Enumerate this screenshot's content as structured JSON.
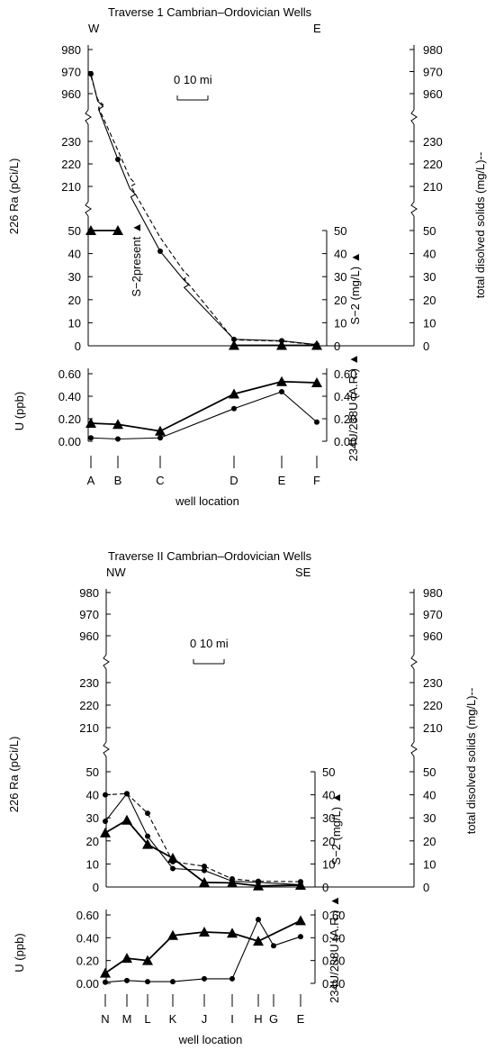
{
  "chart_data": [
    {
      "type": "line",
      "title": "Traverse 1 Cambrian–Ordovician Wells",
      "direction_left": "W",
      "direction_right": "E",
      "scale_bar_label": "0    10 mi",
      "xlabel": "well location",
      "categories": [
        "A",
        "B",
        "C",
        "D",
        "E",
        "F"
      ],
      "upper_panel": {
        "left_axis_label": "226 Ra (pCi/L)",
        "right_axis_label_inner": "S−2 (mg/L) ▲",
        "right_axis_label_outer": "total disolved solids (mg/L)--",
        "ticks_high": [
          "980",
          "970",
          "960"
        ],
        "ticks_mid": [
          "230",
          "220",
          "210"
        ],
        "ticks_low": [
          "50",
          "40",
          "30",
          "20",
          "10",
          "0"
        ],
        "ylim_low": [
          0,
          50
        ],
        "annotation": "S−2present ▲",
        "series": [
          {
            "name": "226 Ra (pCi/L)",
            "style": "solid-circle",
            "values": [
              {
                "x": "A",
                "y": 969
              },
              {
                "x": "B",
                "y": 222
              },
              {
                "x": "C",
                "y": 41
              },
              {
                "x": "D",
                "y": 2.8
              },
              {
                "x": "E",
                "y": 2.2
              },
              {
                "x": "F",
                "y": 0.5
              }
            ]
          },
          {
            "name": "total disolved solids (mg/L)",
            "style": "dashed",
            "values": [
              {
                "x": "A",
                "y": 968
              },
              {
                "x": "B",
                "y": 226
              },
              {
                "x": "C",
                "y": 47
              },
              {
                "x": "D",
                "y": 2.6
              },
              {
                "x": "E",
                "y": 2.0
              },
              {
                "x": "F",
                "y": 0.4
              }
            ]
          },
          {
            "name": "S−2 (mg/L)",
            "style": "solid-triangle",
            "values": [
              {
                "x": "A",
                "y": 50
              },
              {
                "x": "B",
                "y": 50
              },
              {
                "x": "D",
                "y": 0.2
              },
              {
                "x": "E",
                "y": 0.2
              },
              {
                "x": "F",
                "y": 0.2
              }
            ]
          }
        ]
      },
      "lower_panel": {
        "left_axis_label": "U (ppb)",
        "right_axis_label": "234U/238U (A.R.) ▲",
        "ticks": [
          "0.60",
          "0.40",
          "0.20",
          "0.00"
        ],
        "ylim": [
          0,
          0.6
        ],
        "series": [
          {
            "name": "U (ppb)",
            "style": "solid-circle",
            "values": [
              0.03,
              0.02,
              0.03,
              0.29,
              0.44,
              0.17
            ]
          },
          {
            "name": "234U/238U (A.R.)",
            "style": "solid-triangle",
            "values": [
              0.16,
              0.15,
              0.09,
              0.42,
              0.53,
              0.52
            ]
          }
        ]
      }
    },
    {
      "type": "line",
      "title": "Traverse II Cambrian–Ordovician Wells",
      "direction_left": "NW",
      "direction_right": "SE",
      "scale_bar_label": "0    10 mi",
      "xlabel": "well location",
      "categories": [
        "N",
        "M",
        "L",
        "K",
        "J",
        "I",
        "H",
        "G",
        "E"
      ],
      "upper_panel": {
        "left_axis_label": "226 Ra (pCi/L)",
        "right_axis_label_inner": "S−2 (mg/L) ▲",
        "right_axis_label_outer": "total disolved solids (mg/L)--",
        "ticks_high": [
          "980",
          "970",
          "960"
        ],
        "ticks_mid": [
          "230",
          "220",
          "210"
        ],
        "ticks_low": [
          "50",
          "40",
          "30",
          "20",
          "10",
          "0"
        ],
        "ylim_low": [
          0,
          50
        ],
        "series": [
          {
            "name": "226 Ra (pCi/L)",
            "style": "solid-circle",
            "values": [
              {
                "x": "N",
                "y": 28.5
              },
              {
                "x": "M",
                "y": 40.5
              },
              {
                "x": "L",
                "y": 22
              },
              {
                "x": "K",
                "y": 8
              },
              {
                "x": "J",
                "y": 7.2
              },
              {
                "x": "I",
                "y": 2.5
              },
              {
                "x": "H",
                "y": 2
              },
              {
                "x": "E",
                "y": 1
              }
            ]
          },
          {
            "name": "total disolved solids (mg/L)",
            "style": "dashed",
            "values": [
              {
                "x": "N",
                "y": 40
              },
              {
                "x": "M",
                "y": 40.5
              },
              {
                "x": "L",
                "y": 32
              },
              {
                "x": "K",
                "y": 11
              },
              {
                "x": "J",
                "y": 9
              },
              {
                "x": "I",
                "y": 3.5
              },
              {
                "x": "H",
                "y": 2.5
              },
              {
                "x": "E",
                "y": 2.3
              }
            ]
          },
          {
            "name": "S−2 (mg/L)",
            "style": "solid-triangle",
            "values": [
              {
                "x": "N",
                "y": 23.5
              },
              {
                "x": "M",
                "y": 29
              },
              {
                "x": "L",
                "y": 18.5
              },
              {
                "x": "K",
                "y": 12.5
              },
              {
                "x": "J",
                "y": 2
              },
              {
                "x": "I",
                "y": 1.8
              },
              {
                "x": "H",
                "y": 0.5
              },
              {
                "x": "E",
                "y": 0.8
              }
            ]
          }
        ]
      },
      "lower_panel": {
        "left_axis_label": "U (ppb)",
        "right_axis_label": "234U/238U (A.R.) ▲",
        "ticks": [
          "0.60",
          "0.40",
          "0.20",
          "0.00"
        ],
        "ylim": [
          0,
          0.6
        ],
        "series": [
          {
            "name": "U (ppb)",
            "style": "solid-circle",
            "values": [
              {
                "x": "N",
                "y": 0.01
              },
              {
                "x": "M",
                "y": 0.025
              },
              {
                "x": "L",
                "y": 0.015
              },
              {
                "x": "K",
                "y": 0.015
              },
              {
                "x": "J",
                "y": 0.04
              },
              {
                "x": "I",
                "y": 0.04
              },
              {
                "x": "H",
                "y": 0.56
              },
              {
                "x": "G",
                "y": 0.33
              },
              {
                "x": "E",
                "y": 0.41
              }
            ]
          },
          {
            "name": "234U/238U (A.R.)",
            "style": "solid-triangle",
            "values": [
              {
                "x": "N",
                "y": 0.09
              },
              {
                "x": "M",
                "y": 0.22
              },
              {
                "x": "L",
                "y": 0.2
              },
              {
                "x": "K",
                "y": 0.42
              },
              {
                "x": "J",
                "y": 0.45
              },
              {
                "x": "I",
                "y": 0.44
              },
              {
                "x": "H",
                "y": 0.37
              },
              {
                "x": "E",
                "y": 0.55
              }
            ]
          }
        ]
      }
    }
  ]
}
